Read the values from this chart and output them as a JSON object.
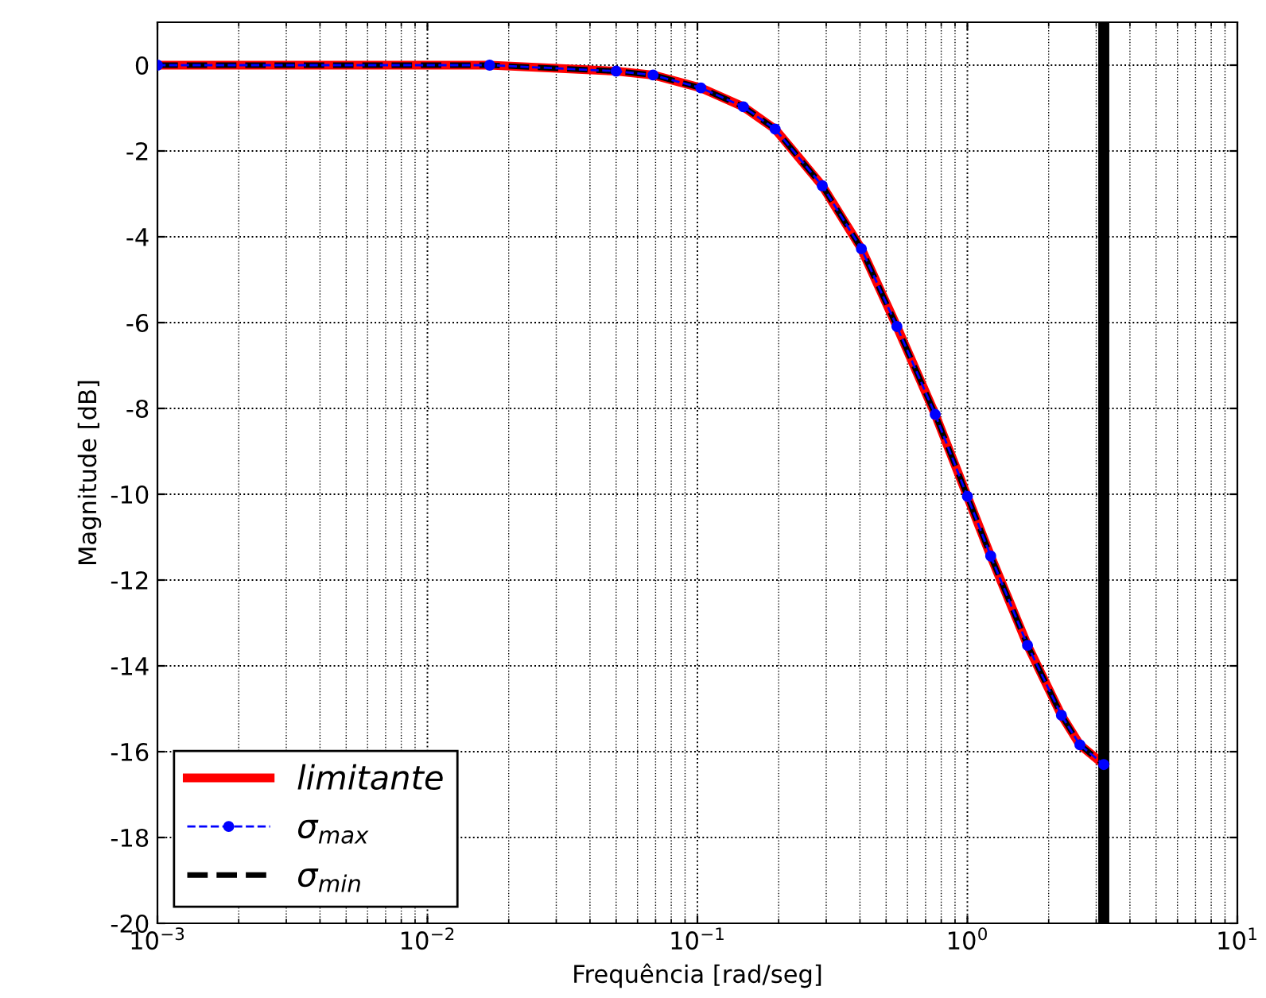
{
  "chart_data": {
    "type": "line",
    "xlabel": "Frequência [rad/seg]",
    "ylabel": "Magnitude [dB]",
    "x": [
      0.001,
      0.017,
      0.05,
      0.0685,
      0.103,
      0.148,
      0.194,
      0.29,
      0.405,
      0.548,
      0.76,
      1.0,
      1.22,
      1.67,
      2.23,
      2.61,
      3.2
    ],
    "series": [
      {
        "name": "limitante",
        "color": "#ff0000",
        "line_style": "solid",
        "marker": "none",
        "values": [
          0,
          0,
          -0.14,
          -0.23,
          -0.53,
          -0.97,
          -1.49,
          -2.81,
          -4.28,
          -6.09,
          -8.14,
          -10.05,
          -11.44,
          -13.52,
          -15.15,
          -15.84,
          -16.3
        ]
      },
      {
        "name": "σ$_{max}$",
        "color": "#0000ff",
        "line_style": "dashed",
        "marker": "circle",
        "values": [
          0,
          0,
          -0.14,
          -0.23,
          -0.53,
          -0.97,
          -1.49,
          -2.81,
          -4.28,
          -6.09,
          -8.14,
          -10.05,
          -11.44,
          -13.52,
          -15.15,
          -15.84,
          -16.3
        ]
      },
      {
        "name": "σ$_{min}$",
        "color": "#000000",
        "line_style": "dashed",
        "marker": "none",
        "values": [
          0,
          0,
          -0.14,
          -0.23,
          -0.53,
          -0.97,
          -1.49,
          -2.81,
          -4.28,
          -6.09,
          -8.14,
          -10.05,
          -11.44,
          -13.52,
          -15.15,
          -15.84,
          -16.3
        ]
      }
    ],
    "log": "x",
    "xlim": [
      0.001,
      10
    ],
    "xticks": [
      {
        "value": 0.001,
        "label": "10$^{−3}$"
      },
      {
        "value": 0.01,
        "label": "10$^{−2}$"
      },
      {
        "value": 0.1,
        "label": "10$^{−1}$"
      },
      {
        "value": 1,
        "label": "10$^{0}$"
      },
      {
        "value": 10,
        "label": "10$^{1}$"
      }
    ],
    "ylim": [
      -20,
      1
    ],
    "yticks": [
      -20,
      -18,
      -16,
      -14,
      -12,
      -10,
      -8,
      -6,
      -4,
      -2,
      0
    ],
    "ref_lines": [
      {
        "axis": "x",
        "value": 3.2,
        "color": "#000000"
      }
    ],
    "grid": true,
    "legend": "bottom left"
  }
}
